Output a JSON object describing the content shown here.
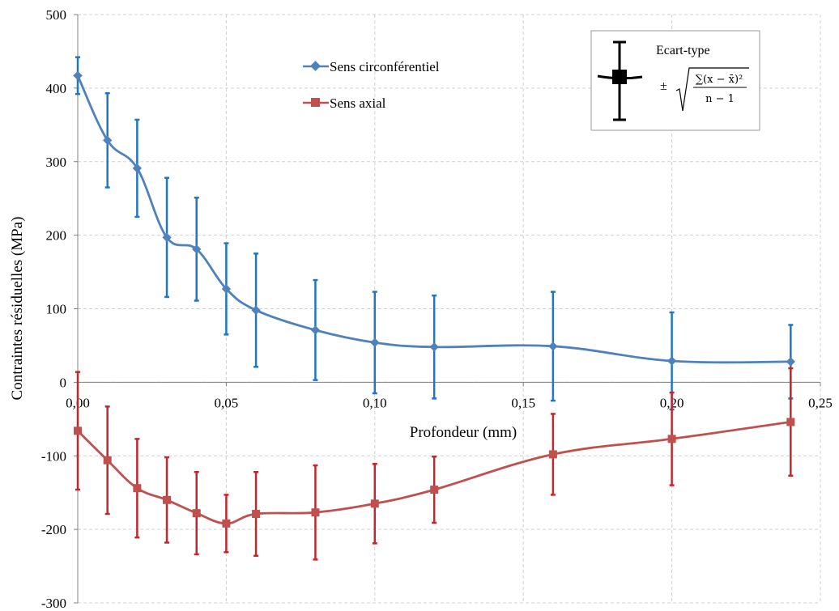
{
  "chart_data": {
    "type": "line",
    "xlabel": "Profondeur (mm)",
    "ylabel": "Contraintes résiduelles (MPa)",
    "xlim": [
      0,
      0.25
    ],
    "ylim": [
      -300,
      500
    ],
    "x_ticks": [
      "0,00",
      "0,05",
      "0,10",
      "0,15",
      "0,20",
      "0,25"
    ],
    "y_ticks": [
      "500",
      "400",
      "300",
      "200",
      "100",
      "0",
      "-100",
      "-200",
      "-300"
    ],
    "grid": "dashed",
    "series": [
      {
        "name": "Sens circonférentiel",
        "color": "#4f81bd",
        "error_color": "#1f77c4",
        "marker": "diamond",
        "x": [
          0,
          0.01,
          0.02,
          0.03,
          0.04,
          0.05,
          0.06,
          0.08,
          0.1,
          0.12,
          0.16,
          0.2,
          0.24
        ],
        "values": [
          417,
          329,
          291,
          197,
          181,
          127,
          98,
          71,
          54,
          48,
          49,
          29,
          28
        ],
        "err": [
          25,
          64,
          66,
          81,
          70,
          62,
          77,
          68,
          69,
          70,
          74,
          66,
          50
        ]
      },
      {
        "name": "Sens axial",
        "color": "#c0504d",
        "error_color": "#c0282d",
        "marker": "square",
        "x": [
          0,
          0.01,
          0.02,
          0.03,
          0.04,
          0.05,
          0.06,
          0.08,
          0.1,
          0.12,
          0.16,
          0.2,
          0.24
        ],
        "values": [
          -66,
          -106,
          -144,
          -160,
          -178,
          -192,
          -179,
          -177,
          -165,
          -146,
          -98,
          -77,
          -54
        ],
        "err": [
          80,
          73,
          67,
          58,
          56,
          39,
          57,
          64,
          54,
          45,
          55,
          63,
          73
        ]
      }
    ],
    "note": {
      "title": "Ecart-type",
      "pm": "±",
      "formula_numerator": "∑(x − x̄)²",
      "formula_denominator": "n − 1"
    }
  }
}
